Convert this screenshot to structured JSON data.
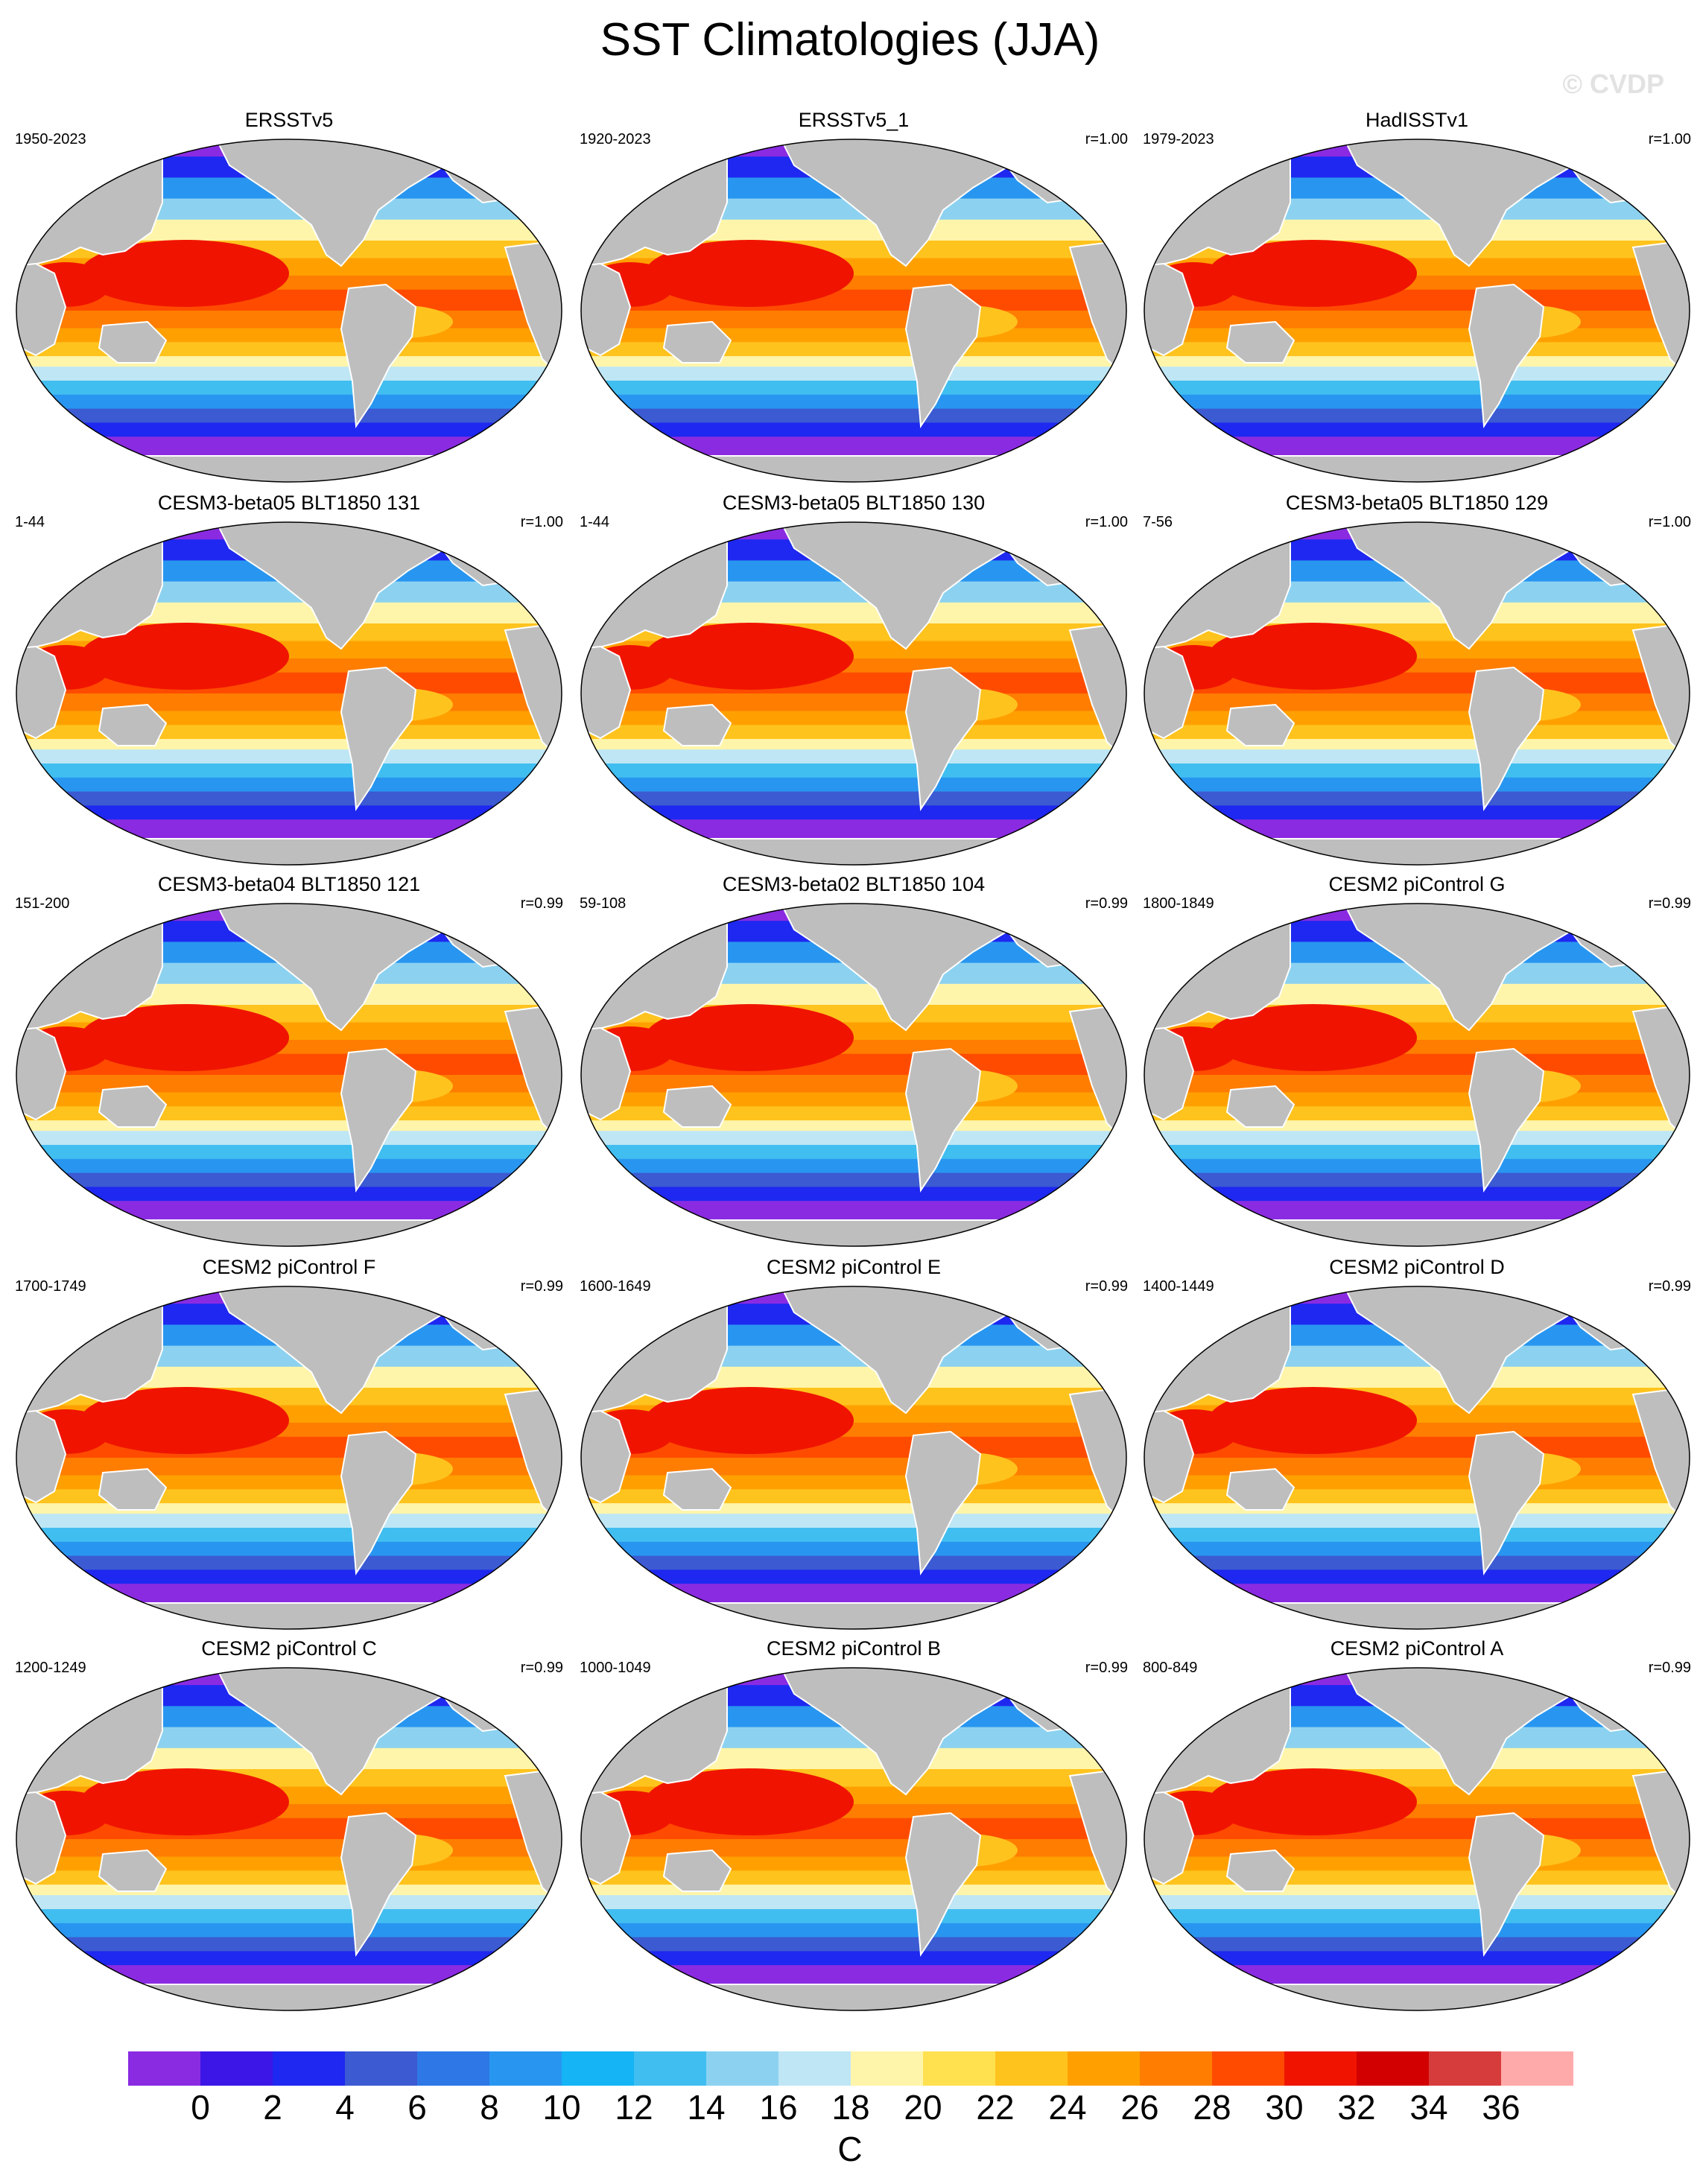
{
  "title": "SST Climatologies (JJA)",
  "watermark": "© CVDP",
  "units": "C",
  "colorbar": {
    "colors": [
      "#8a2be2",
      "#3c16e6",
      "#1e28f0",
      "#3c5ad2",
      "#2d78e6",
      "#2896f0",
      "#14b4f5",
      "#41bef0",
      "#8cd2f0",
      "#bee6f5",
      "#fff5aa",
      "#ffe150",
      "#ffc31e",
      "#ffa000",
      "#ff7d00",
      "#ff4b00",
      "#f01400",
      "#d20000",
      "#d73c3c",
      "#ffaaaa"
    ],
    "ticks": [
      "0",
      "2",
      "4",
      "6",
      "8",
      "10",
      "12",
      "14",
      "16",
      "18",
      "20",
      "22",
      "24",
      "26",
      "28",
      "30",
      "32",
      "34",
      "36"
    ]
  },
  "panels": [
    {
      "title": "ERSSTv5",
      "years": "1950-2023",
      "r": ""
    },
    {
      "title": "ERSSTv5_1",
      "years": "1920-2023",
      "r": "r=1.00"
    },
    {
      "title": "HadISSTv1",
      "years": "1979-2023",
      "r": "r=1.00"
    },
    {
      "title": "CESM3-beta05 BLT1850 131",
      "years": "1-44",
      "r": "r=1.00"
    },
    {
      "title": "CESM3-beta05 BLT1850 130",
      "years": "1-44",
      "r": "r=1.00"
    },
    {
      "title": "CESM3-beta05 BLT1850 129",
      "years": "7-56",
      "r": "r=1.00"
    },
    {
      "title": "CESM3-beta04 BLT1850 121",
      "years": "151-200",
      "r": "r=0.99"
    },
    {
      "title": "CESM3-beta02 BLT1850 104",
      "years": "59-108",
      "r": "r=0.99"
    },
    {
      "title": "CESM2 piControl G",
      "years": "1800-1849",
      "r": "r=0.99"
    },
    {
      "title": "CESM2 piControl F",
      "years": "1700-1749",
      "r": "r=0.99"
    },
    {
      "title": "CESM2 piControl E",
      "years": "1600-1649",
      "r": "r=0.99"
    },
    {
      "title": "CESM2 piControl D",
      "years": "1400-1449",
      "r": "r=0.99"
    },
    {
      "title": "CESM2 piControl C",
      "years": "1200-1249",
      "r": "r=0.99"
    },
    {
      "title": "CESM2 piControl B",
      "years": "1000-1049",
      "r": "r=0.99"
    },
    {
      "title": "CESM2 piControl A",
      "years": "800-849",
      "r": "r=0.99"
    }
  ]
}
